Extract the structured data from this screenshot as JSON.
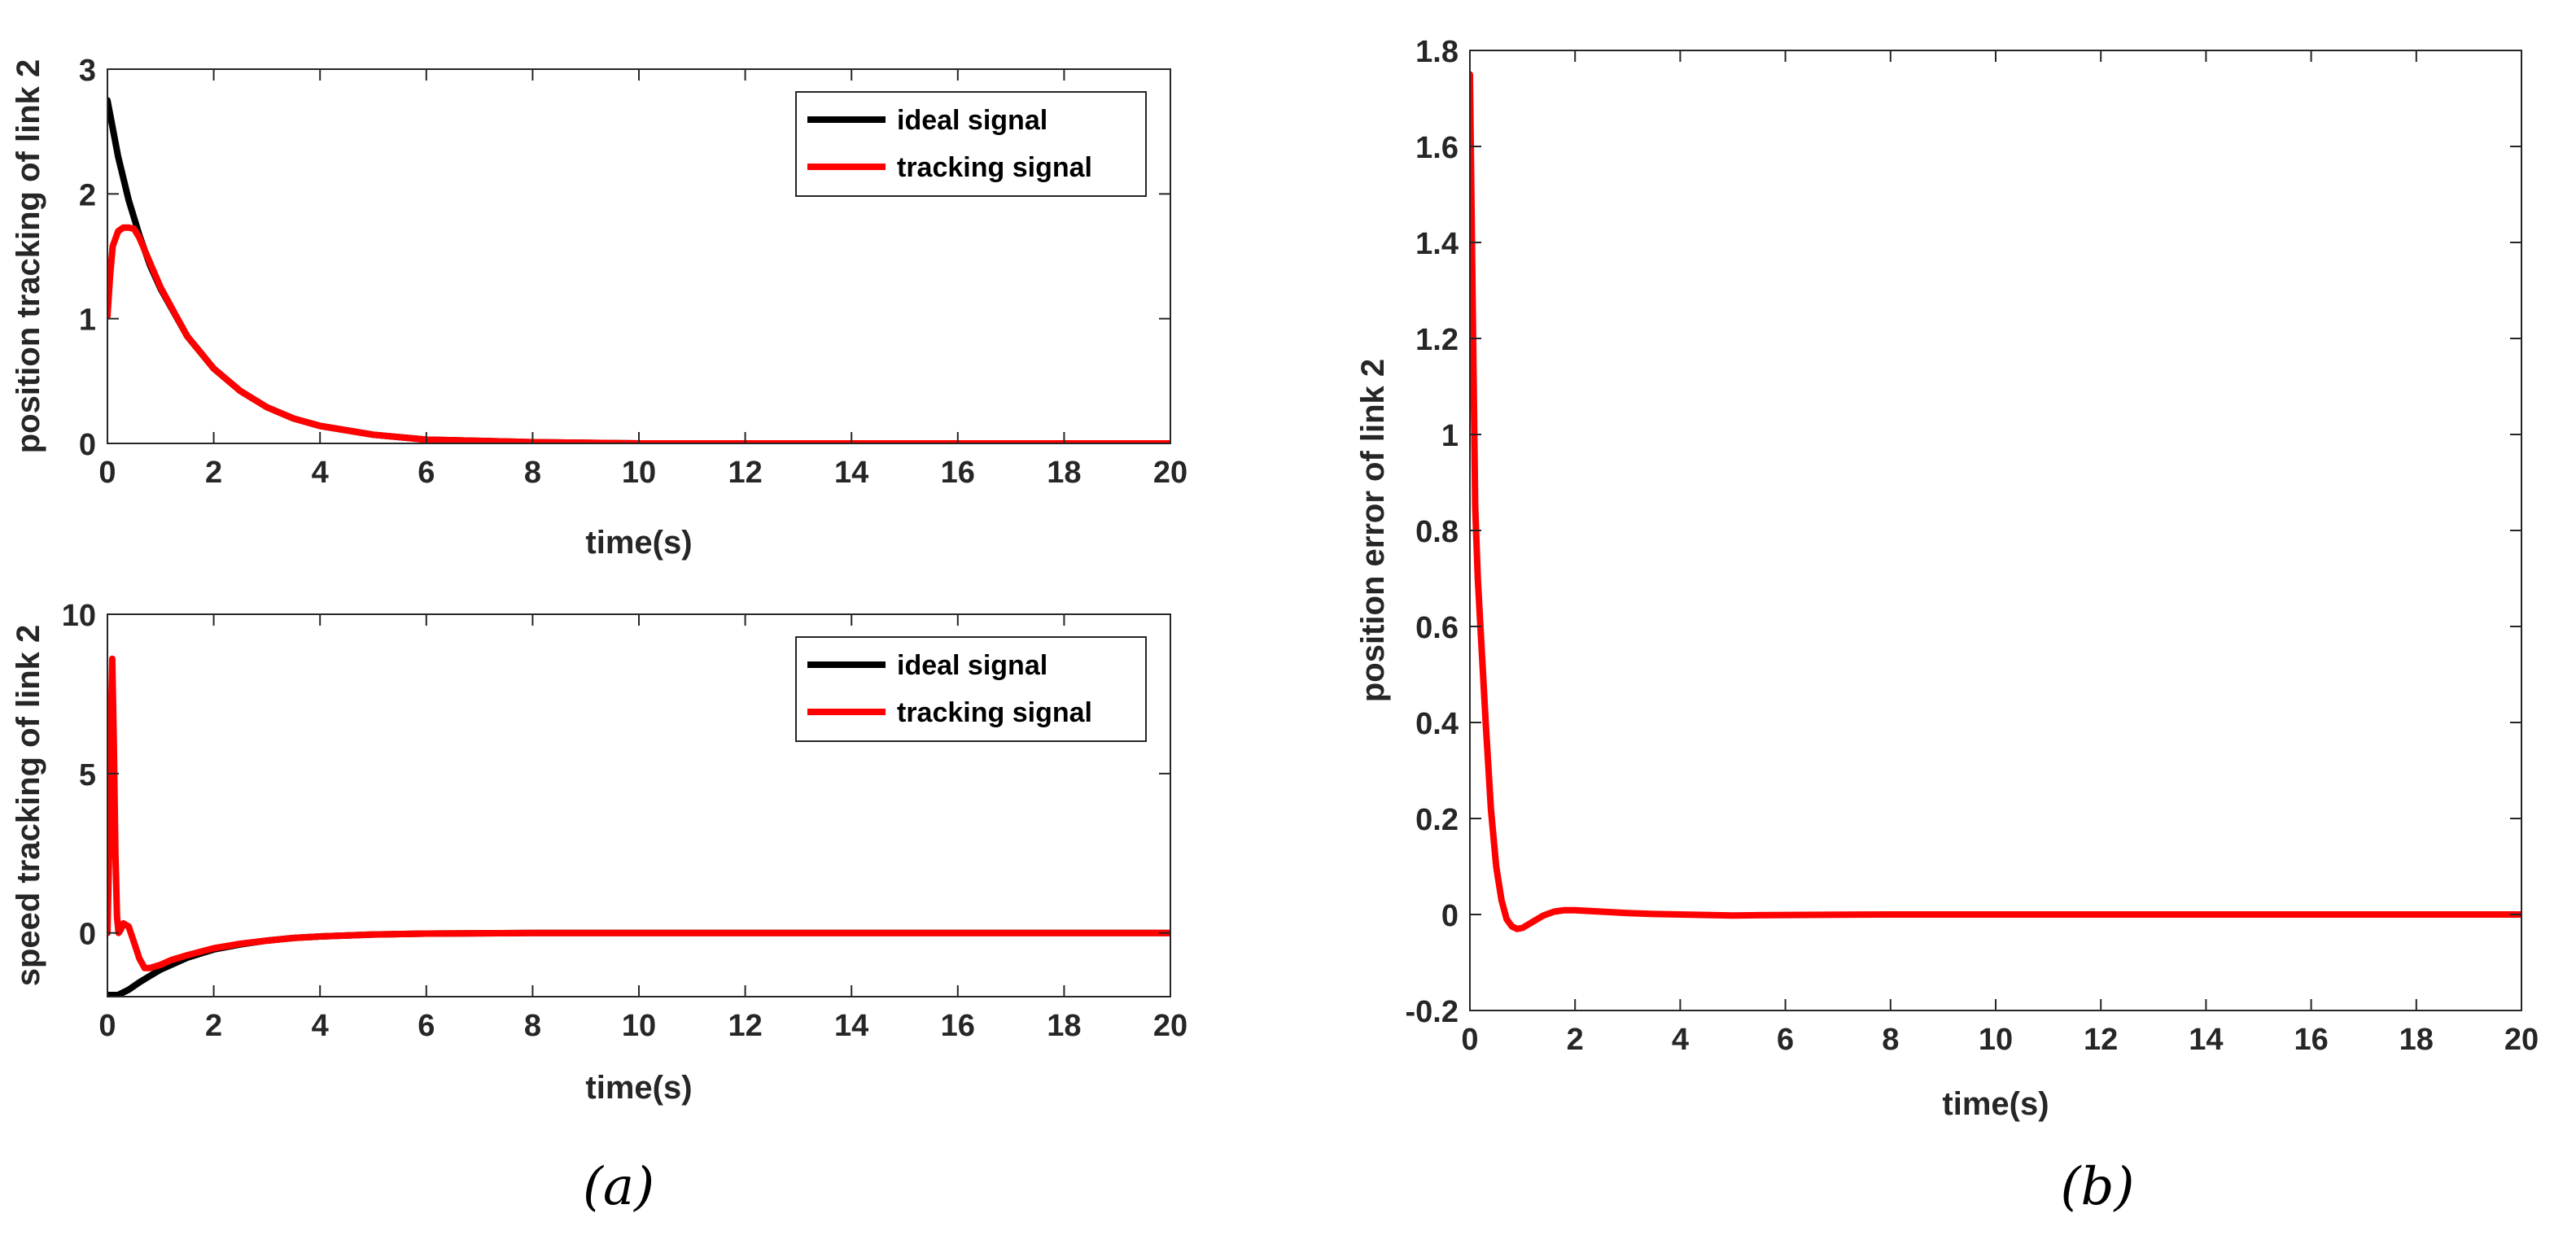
{
  "colors": {
    "ideal": "#000000",
    "tracking": "#ff0000",
    "axis": "#262626"
  },
  "captions": {
    "a": "(a)",
    "b": "(b)"
  },
  "chart_data": [
    {
      "id": "top",
      "type": "line",
      "title": "",
      "xlabel": "time(s)",
      "ylabel": "position tracking of link 2",
      "xlim": [
        0,
        20
      ],
      "ylim": [
        0,
        3
      ],
      "xticks": [
        0,
        2,
        4,
        6,
        8,
        10,
        12,
        14,
        16,
        18,
        20
      ],
      "yticks": [
        0,
        1,
        2,
        3
      ],
      "legend": "top-right",
      "series": [
        {
          "name": "ideal signal",
          "color": "#000000",
          "x": [
            0,
            0.2,
            0.4,
            0.6,
            0.8,
            1,
            1.5,
            2,
            2.5,
            3,
            3.5,
            4,
            5,
            6,
            8,
            10,
            14,
            20
          ],
          "y": [
            2.75,
            2.3,
            1.95,
            1.67,
            1.43,
            1.24,
            0.86,
            0.6,
            0.42,
            0.29,
            0.2,
            0.14,
            0.07,
            0.03,
            0.01,
            0,
            0,
            0
          ]
        },
        {
          "name": "tracking signal",
          "color": "#ff0000",
          "x": [
            0,
            0.05,
            0.1,
            0.2,
            0.3,
            0.4,
            0.5,
            0.6,
            0.8,
            1,
            1.5,
            2,
            2.5,
            3,
            3.5,
            4,
            5,
            6,
            8,
            10,
            14,
            20
          ],
          "y": [
            1.02,
            1.35,
            1.58,
            1.7,
            1.73,
            1.73,
            1.72,
            1.65,
            1.45,
            1.25,
            0.86,
            0.6,
            0.42,
            0.29,
            0.2,
            0.14,
            0.07,
            0.03,
            0.01,
            0,
            0,
            0
          ]
        }
      ]
    },
    {
      "id": "bottom",
      "type": "line",
      "title": "",
      "xlabel": "time(s)",
      "ylabel": "speed tracking of link 2",
      "xlim": [
        0,
        20
      ],
      "ylim": [
        -2,
        10
      ],
      "xticks": [
        0,
        2,
        4,
        6,
        8,
        10,
        12,
        14,
        16,
        18,
        20
      ],
      "yticks": [
        0,
        5,
        10
      ],
      "legend": "top-right",
      "series": [
        {
          "name": "ideal signal",
          "color": "#000000",
          "x": [
            0,
            0.2,
            0.4,
            0.6,
            0.8,
            1,
            1.5,
            2,
            2.5,
            3,
            3.5,
            4,
            5,
            6,
            8,
            10,
            14,
            20
          ],
          "y": [
            -1.95,
            -1.95,
            -1.78,
            -1.55,
            -1.35,
            -1.15,
            -0.78,
            -0.52,
            -0.36,
            -0.24,
            -0.16,
            -0.11,
            -0.05,
            -0.02,
            0,
            0,
            0,
            0
          ]
        },
        {
          "name": "tracking signal",
          "color": "#ff0000",
          "x": [
            0,
            0.03,
            0.06,
            0.09,
            0.12,
            0.15,
            0.18,
            0.21,
            0.25,
            0.3,
            0.4,
            0.5,
            0.6,
            0.7,
            0.8,
            1,
            1.2,
            1.5,
            2,
            2.5,
            3,
            3.5,
            4,
            5,
            6,
            8,
            10,
            14,
            20
          ],
          "y": [
            0,
            2.5,
            6,
            8.6,
            6,
            2.5,
            0.5,
            0,
            0.1,
            0.3,
            0.2,
            -0.3,
            -0.8,
            -1.1,
            -1.1,
            -1.0,
            -0.85,
            -0.7,
            -0.48,
            -0.34,
            -0.24,
            -0.16,
            -0.11,
            -0.05,
            -0.02,
            0,
            0,
            0,
            0
          ]
        }
      ]
    },
    {
      "id": "right",
      "type": "line",
      "title": "",
      "xlabel": "time(s)",
      "ylabel": "position error of link  2",
      "xlim": [
        0,
        20
      ],
      "ylim": [
        -0.2,
        1.8
      ],
      "xticks": [
        0,
        2,
        4,
        6,
        8,
        10,
        12,
        14,
        16,
        18,
        20
      ],
      "yticks": [
        -0.2,
        0,
        0.2,
        0.4,
        0.6,
        0.8,
        1,
        1.2,
        1.4,
        1.6,
        1.8
      ],
      "yticklabels": [
        "-0.2",
        "0",
        "0.2",
        "0.4",
        "0.6",
        "0.8",
        "1",
        "1.2",
        "1.4",
        "1.6",
        "1.8"
      ],
      "legend": "none",
      "series": [
        {
          "color": "#ff0000",
          "x": [
            0,
            0.05,
            0.1,
            0.15,
            0.2,
            0.3,
            0.4,
            0.5,
            0.6,
            0.7,
            0.8,
            0.9,
            1,
            1.2,
            1.4,
            1.6,
            1.8,
            2,
            2.5,
            3,
            3.5,
            4,
            5,
            6,
            8,
            10,
            20
          ],
          "y": [
            1.75,
            1.3,
            0.85,
            0.7,
            0.6,
            0.4,
            0.22,
            0.1,
            0.03,
            -0.01,
            -0.025,
            -0.03,
            -0.028,
            -0.015,
            -0.002,
            0.006,
            0.009,
            0.009,
            0.006,
            0.003,
            0.001,
            0,
            -0.002,
            -0.001,
            0,
            0,
            0
          ]
        }
      ]
    }
  ]
}
